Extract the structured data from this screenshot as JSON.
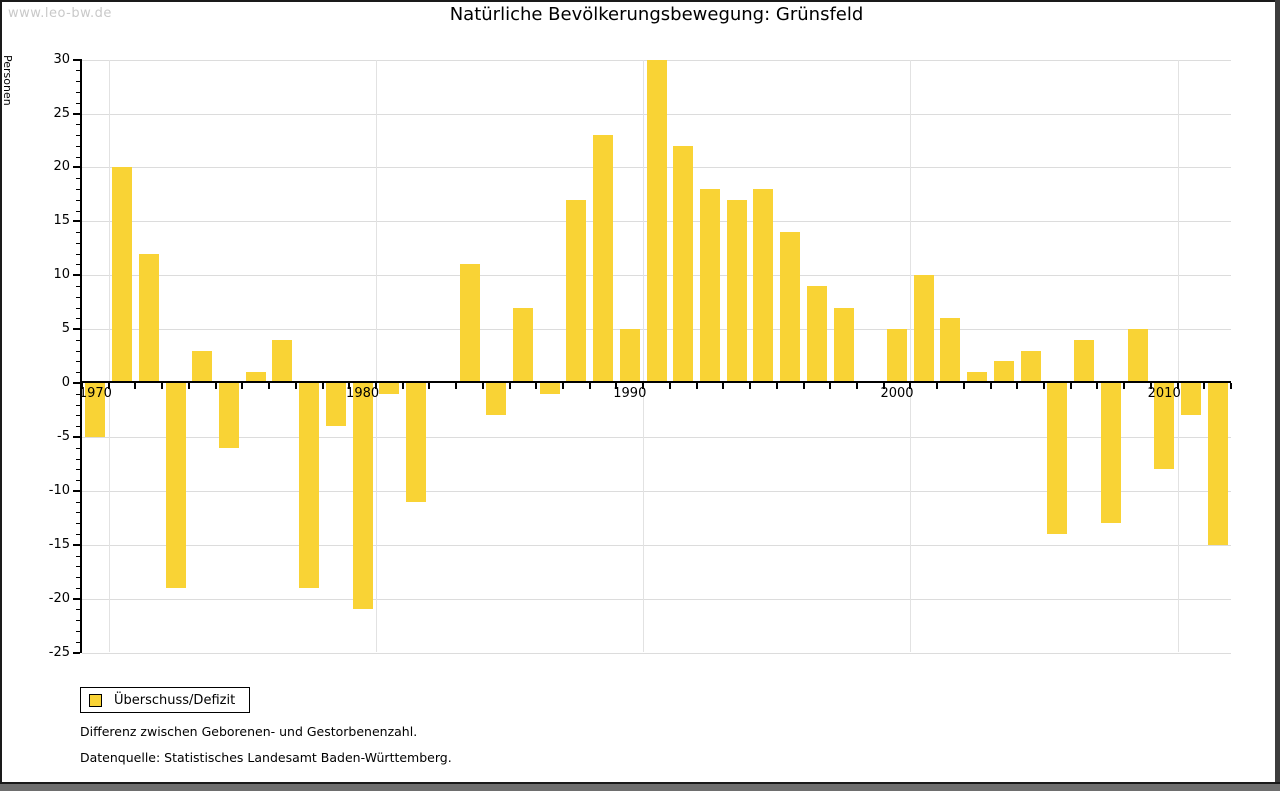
{
  "window": {
    "watermark": "www.leo-bw.de"
  },
  "chart_data": {
    "type": "bar",
    "title": "Natürliche Bevölkerungsbewegung: Grünsfeld",
    "ylabel": "Personen",
    "legend": "Überschuss/Defizit",
    "bar_color": "#f9d335",
    "grid_color": "#dcdcdc",
    "ylim": [
      -25,
      30
    ],
    "ytick_step": 5,
    "ytick_labels": [
      "30",
      "25",
      "20",
      "15",
      "10",
      "5",
      "0",
      "-5",
      "-10",
      "-15",
      "-20",
      "-25"
    ],
    "xtick_decades": [
      {
        "label": "1970",
        "index": 0
      },
      {
        "label": "1980",
        "index": 10
      },
      {
        "label": "1990",
        "index": 20
      },
      {
        "label": "2000",
        "index": 30
      },
      {
        "label": "2010",
        "index": 40
      }
    ],
    "years": [
      1970,
      1971,
      1972,
      1973,
      1974,
      1975,
      1976,
      1977,
      1978,
      1979,
      1980,
      1981,
      1982,
      1983,
      1984,
      1985,
      1986,
      1987,
      1988,
      1989,
      1990,
      1991,
      1992,
      1993,
      1994,
      1995,
      1996,
      1997,
      1998,
      1999,
      2000,
      2001,
      2002,
      2003,
      2004,
      2005,
      2006,
      2007,
      2008,
      2009,
      2010,
      2011,
      2012
    ],
    "values": [
      -5,
      20,
      12,
      -19,
      3,
      -6,
      1,
      4,
      -19,
      -4,
      -21,
      -1,
      -11,
      0,
      11,
      -3,
      7,
      -1,
      17,
      23,
      5,
      30,
      22,
      18,
      17,
      18,
      14,
      9,
      7,
      0,
      5,
      10,
      6,
      1,
      2,
      3,
      -14,
      4,
      -13,
      5,
      -8,
      -3,
      -15
    ]
  },
  "notes": {
    "line1": "Differenz zwischen Geborenen- und Gestorbenenzahl.",
    "line2": "Datenquelle: Statistisches Landesamt Baden-Württemberg."
  }
}
